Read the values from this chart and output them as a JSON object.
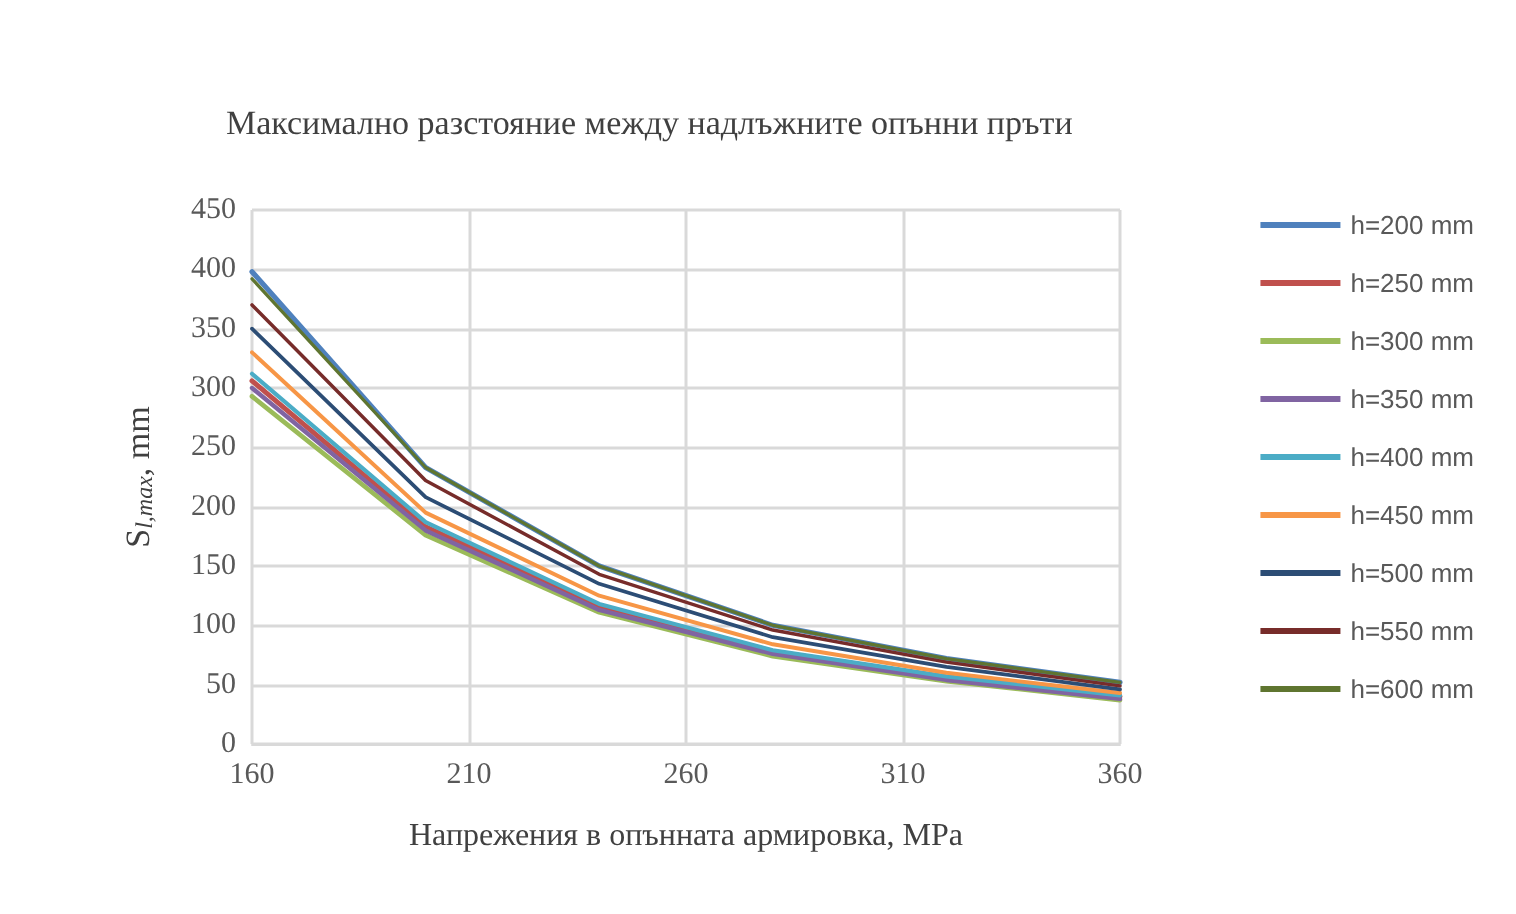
{
  "chart_data": {
    "type": "line",
    "title": "Максимално разстояние между надлъжните опънни пръти",
    "xlabel": "Напрежения в опънната армировка, MPa",
    "ylabel": "S$_{l,max}$, mm",
    "x": [
      160,
      200,
      240,
      280,
      320,
      360
    ],
    "series": [
      {
        "name": "h=200 mm",
        "color": "#4f81bd",
        "values": [
          398,
          233,
          150,
          100,
          72,
          52
        ]
      },
      {
        "name": "h=250 mm",
        "color": "#c0504d",
        "values": [
          306,
          183,
          116,
          78,
          56,
          40
        ]
      },
      {
        "name": "h=300 mm",
        "color": "#9bbb59",
        "values": [
          293,
          176,
          111,
          74,
          53,
          37
        ]
      },
      {
        "name": "h=350 mm",
        "color": "#8064a2",
        "values": [
          300,
          180,
          113,
          76,
          54,
          38
        ]
      },
      {
        "name": "h=400 mm",
        "color": "#4bacc6",
        "values": [
          312,
          187,
          118,
          79,
          57,
          41
        ]
      },
      {
        "name": "h=450 mm",
        "color": "#f79646",
        "values": [
          330,
          195,
          125,
          84,
          60,
          43
        ]
      },
      {
        "name": "h=500 mm",
        "color": "#2c4d75",
        "values": [
          350,
          208,
          135,
          90,
          65,
          46
        ]
      },
      {
        "name": "h=550 mm",
        "color": "#772c2a",
        "values": [
          370,
          222,
          143,
          96,
          69,
          49
        ]
      },
      {
        "name": "h=600 mm",
        "color": "#5f7530",
        "values": [
          392,
          233,
          150,
          100,
          72,
          52
        ]
      }
    ],
    "xlim": [
      160,
      360
    ],
    "xticks": [
      160,
      210,
      260,
      310,
      360
    ],
    "ylim": [
      0,
      450
    ],
    "yticks": [
      0,
      50,
      100,
      150,
      200,
      250,
      300,
      350,
      400,
      450
    ],
    "grid": true,
    "legend": "right",
    "marker": "none",
    "line_style": "solid"
  }
}
